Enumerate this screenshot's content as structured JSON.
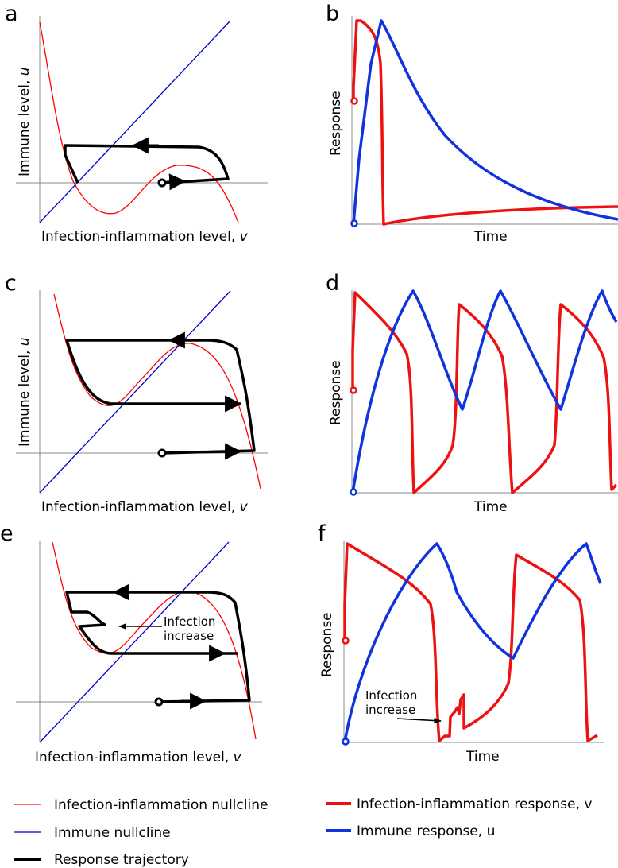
{
  "panels": {
    "a": {
      "label": "a",
      "xlabel": "Infection-inflammation level, ",
      "xvar": "v",
      "ylabel": "Immune level, ",
      "yvar": "u"
    },
    "b": {
      "label": "b",
      "xlabel": "Time",
      "ylabel": "Response"
    },
    "c": {
      "label": "c",
      "xlabel": "Infection-inflammation level, ",
      "xvar": "v",
      "ylabel": "Immune level, ",
      "yvar": "u"
    },
    "d": {
      "label": "d",
      "xlabel": "Time",
      "ylabel": "Response"
    },
    "e": {
      "label": "e",
      "xlabel": "Infection-inflammation level, ",
      "xvar": "v",
      "annotation_line1": "Infection",
      "annotation_line2": "increase"
    },
    "f": {
      "label": "f",
      "xlabel": "Time",
      "ylabel": "Response",
      "annotation_line1": "Infection",
      "annotation_line2": "increase"
    }
  },
  "legend": {
    "left": [
      {
        "label": "Infection-inflammation nullcline",
        "color": "#ff0000"
      },
      {
        "label": "Immune nullcline",
        "color": "#0000cc"
      },
      {
        "label": "Response trajectory",
        "color": "#000000"
      }
    ],
    "right": [
      {
        "label": "Infection-inflammation response, v",
        "color": "#ee1111"
      },
      {
        "label": "Immune response, u",
        "color": "#1133dd"
      }
    ]
  },
  "colors": {
    "nullcline_v": "#ff0000",
    "nullcline_u": "#0000cc",
    "trajectory": "#000000",
    "response_v": "#ee1111",
    "response_u": "#1133dd",
    "axis": "#888888"
  }
}
